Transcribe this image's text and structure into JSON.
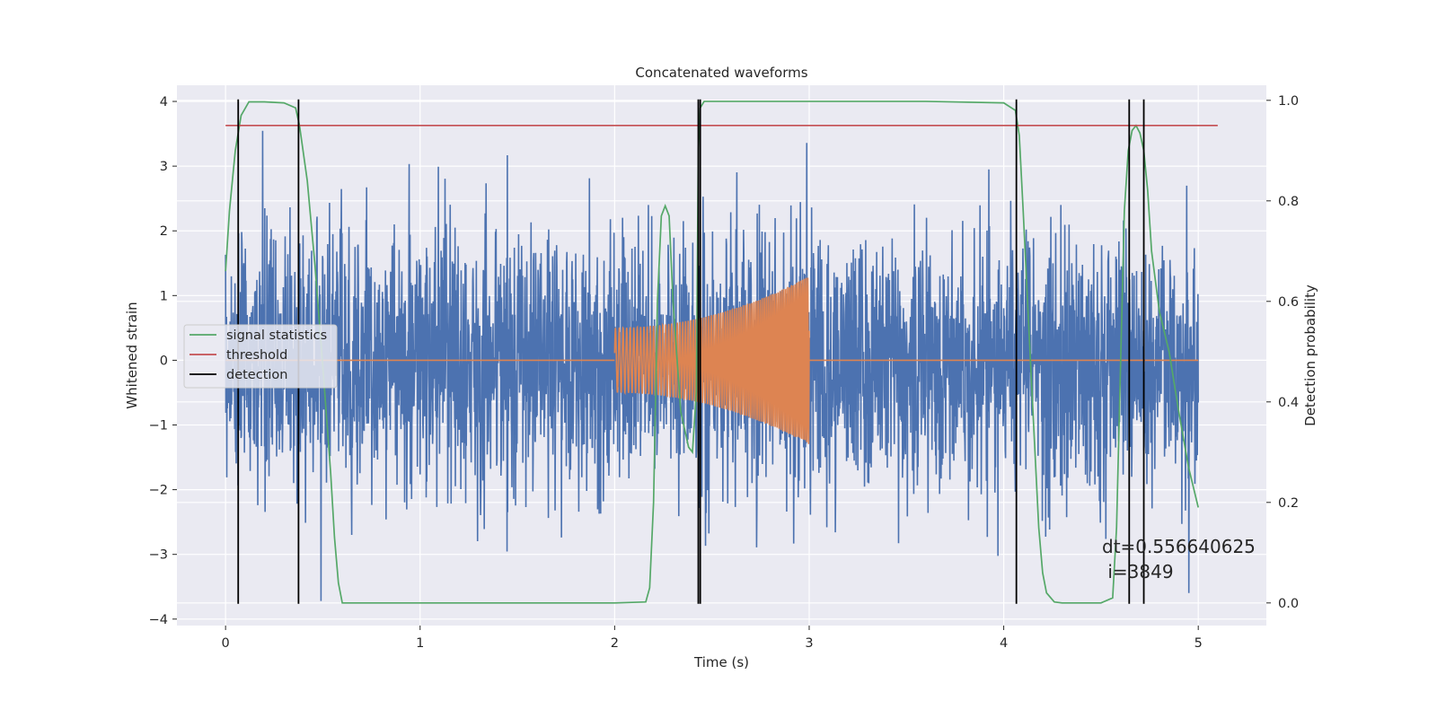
{
  "chart_data": {
    "type": "line",
    "title": "Concatenated waveforms",
    "xlabel": "Time (s)",
    "ylabel": "Whitened strain",
    "ylabel_right": "Detection probability",
    "xlim": [
      -0.25,
      5.35
    ],
    "ylim": [
      -4.1,
      4.25
    ],
    "ylim_right": [
      -0.045,
      1.03
    ],
    "x_ticks": [
      0,
      1,
      2,
      3,
      4,
      5
    ],
    "y_ticks": [
      -4,
      -3,
      -2,
      -1,
      0,
      1,
      2,
      3,
      4
    ],
    "y_ticks_right": [
      0.0,
      0.2,
      0.4,
      0.6,
      0.8,
      1.0
    ],
    "grid": true,
    "legend_placement": "center-left",
    "legend": [
      "signal statistics",
      "threshold",
      "detection"
    ],
    "noise": {
      "name": "whitened strain",
      "color": "#4c72b0",
      "x_range": [
        0,
        5
      ],
      "typical_amplitude": 1.0,
      "max": 3.92,
      "min": -3.72
    },
    "injected_signal": {
      "name": "injected waveform",
      "color": "#dd8452",
      "x_start": 2.0,
      "x_end": 3.0,
      "start_amplitude": 0.5,
      "end_amplitude": 1.3,
      "baseline": 0.0
    },
    "signal_statistics": {
      "name": "signal statistics",
      "color": "#55a868",
      "x": [
        0.0,
        0.02,
        0.05,
        0.08,
        0.12,
        0.2,
        0.3,
        0.36,
        0.38,
        0.42,
        0.46,
        0.5,
        0.54,
        0.56,
        0.58,
        0.6,
        0.8,
        1.2,
        1.6,
        2.0,
        2.16,
        2.18,
        2.2,
        2.22,
        2.24,
        2.26,
        2.28,
        2.3,
        2.34,
        2.38,
        2.4,
        2.42,
        2.43,
        2.44,
        2.46,
        2.5,
        3.0,
        3.6,
        4.0,
        4.06,
        4.08,
        4.1,
        4.14,
        4.18,
        4.2,
        4.22,
        4.26,
        4.3,
        4.5,
        4.56,
        4.58,
        4.62,
        4.64,
        4.66,
        4.68,
        4.7,
        4.72,
        4.74,
        4.76,
        4.8,
        4.85,
        4.9,
        4.95,
        5.0
      ],
      "y": [
        0.66,
        0.78,
        0.9,
        0.97,
        0.997,
        0.997,
        0.995,
        0.985,
        0.95,
        0.84,
        0.67,
        0.47,
        0.26,
        0.13,
        0.04,
        0.0,
        0.0,
        0.0,
        0.0,
        0.0,
        0.002,
        0.03,
        0.2,
        0.6,
        0.77,
        0.79,
        0.77,
        0.6,
        0.38,
        0.31,
        0.3,
        0.42,
        0.9,
        0.985,
        0.998,
        0.998,
        0.998,
        0.998,
        0.995,
        0.98,
        0.93,
        0.78,
        0.46,
        0.15,
        0.06,
        0.02,
        0.002,
        0.0,
        0.0,
        0.01,
        0.15,
        0.78,
        0.9,
        0.94,
        0.95,
        0.935,
        0.9,
        0.82,
        0.7,
        0.58,
        0.5,
        0.38,
        0.27,
        0.19
      ]
    },
    "threshold": {
      "name": "threshold",
      "color": "#c44e52",
      "value": 0.95,
      "x_range": [
        0,
        5.1
      ]
    },
    "detections": {
      "name": "detection",
      "color": "#000000",
      "x": [
        0.065,
        0.375,
        2.43,
        2.44,
        4.065,
        4.645,
        4.72
      ]
    },
    "annotation": "dt=0.556640625\n i=3849"
  }
}
